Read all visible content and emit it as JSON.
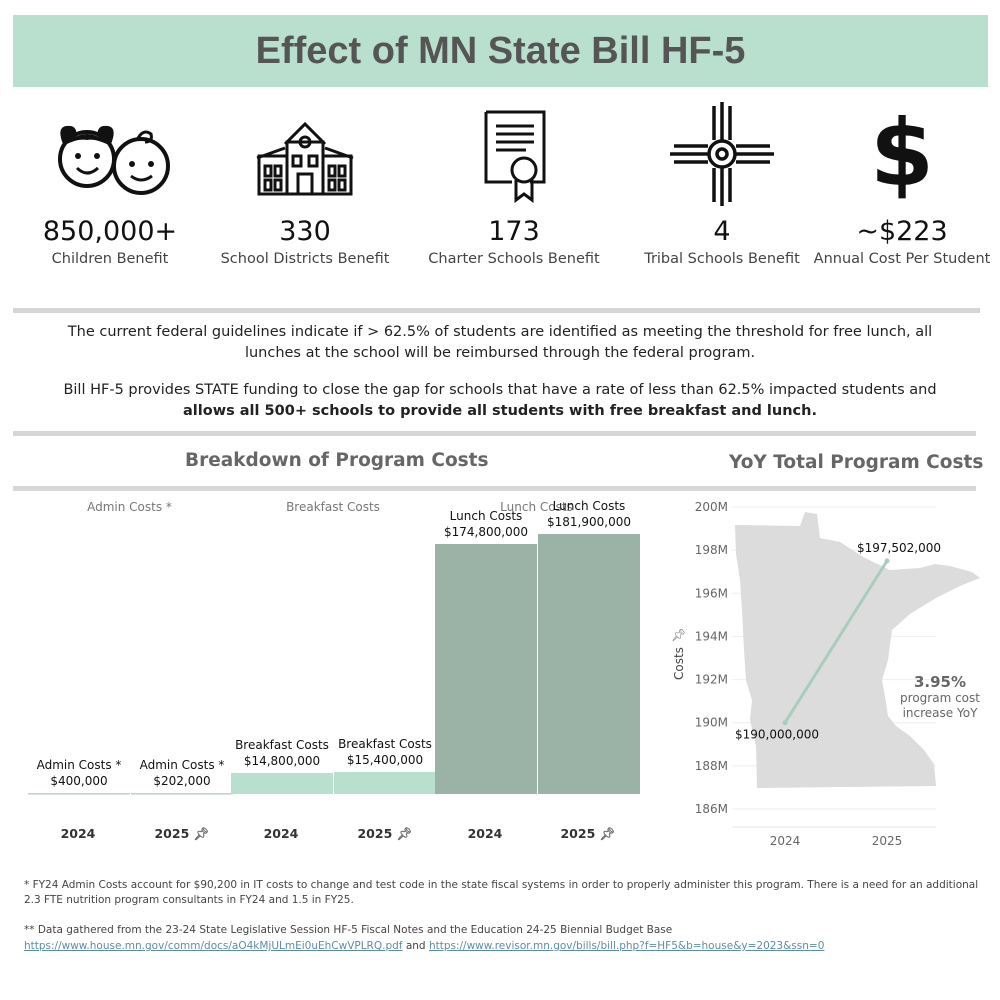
{
  "header": {
    "title": "Effect of MN State Bill HF-5"
  },
  "stats": [
    {
      "value": "850,000+",
      "label": "Children Benefit",
      "icon": "children-faces-icon"
    },
    {
      "value": "330",
      "label": "School Districts Benefit",
      "icon": "school-building-icon"
    },
    {
      "value": "173",
      "label": "Charter Schools Benefit",
      "icon": "certificate-icon"
    },
    {
      "value": "4",
      "label": "Tribal Schools Benefit",
      "icon": "zia-sun-symbol-icon"
    },
    {
      "value": "~$223",
      "label": "Annual Cost Per Student",
      "icon": "dollar-sign-icon"
    }
  ],
  "info": {
    "p1": "The current federal guidelines indicate if > 62.5% of students are identified as meeting the threshold for free lunch, all lunches at the school will be reimbursed through the federal program.",
    "p2_normal": "Bill HF-5 provides STATE funding to close the gap for schools that have a rate of less than 62.5% impacted students and",
    "p2_bold": "allows all 500+ schools to provide all students with free breakfast and lunch."
  },
  "chart_data": [
    {
      "type": "bar",
      "title": "Breakdown of Program Costs",
      "groups": [
        "Admin Costs *",
        "Breakfast Costs",
        "Lunch Costs"
      ],
      "categories": [
        "2024",
        "2025"
      ],
      "series": [
        {
          "name": "Admin Costs *",
          "values": [
            400000,
            202000
          ],
          "labels": [
            "$400,000",
            "$202,000"
          ]
        },
        {
          "name": "Breakfast Costs",
          "values": [
            14800000,
            15400000
          ],
          "labels": [
            "$14,800,000",
            "$15,400,000"
          ]
        },
        {
          "name": "Lunch Costs",
          "values": [
            174800000,
            181900000
          ],
          "labels": [
            "$174,800,000",
            "$181,900,000"
          ]
        }
      ],
      "ylim": [
        0,
        200000000
      ]
    },
    {
      "type": "line",
      "title": "YoY Total Program Costs",
      "ylabel": "Costs",
      "x": [
        "2024",
        "2025"
      ],
      "values": [
        190000000,
        197502000
      ],
      "labels": [
        "$190,000,000",
        "$197,502,000"
      ],
      "yticks": [
        "186M",
        "188M",
        "190M",
        "192M",
        "194M",
        "196M",
        "198M",
        "200M"
      ],
      "ylim": [
        185500000,
        200000000
      ],
      "annotation": {
        "value": "3.95%",
        "text1": "program cost",
        "text2": "increase YoY"
      }
    }
  ],
  "footnotes": {
    "note1": "* FY24 Admin Costs account for $90,200 in IT costs to change and test code in the state fiscal systems in order to properly administer this program. There is a need for an additional 2.3 FTE nutrition program consultants in FY24 and 1.5 in FY25.",
    "note2": "** Data gathered from the 23-24 State Legislative Session HF-5 Fiscal Notes and the Education 24-25 Biennial Budget Base",
    "link1": "https://www.house.mn.gov/comm/docs/aO4kMjULmEi0uEhCwVPLRQ.pdf",
    "and": "and",
    "link2": "https://www.revisor.mn.gov/bills/bill.php?f=HF5&b=house&y=2023&ssn=0"
  },
  "colors": {
    "accent": "#b9e0ce",
    "lunch": "#9ab3a6",
    "breakfast": "#b9e0ce",
    "admin": "#d9e8e0",
    "map": "#dcdcdc",
    "line": "#a9cdbc"
  }
}
